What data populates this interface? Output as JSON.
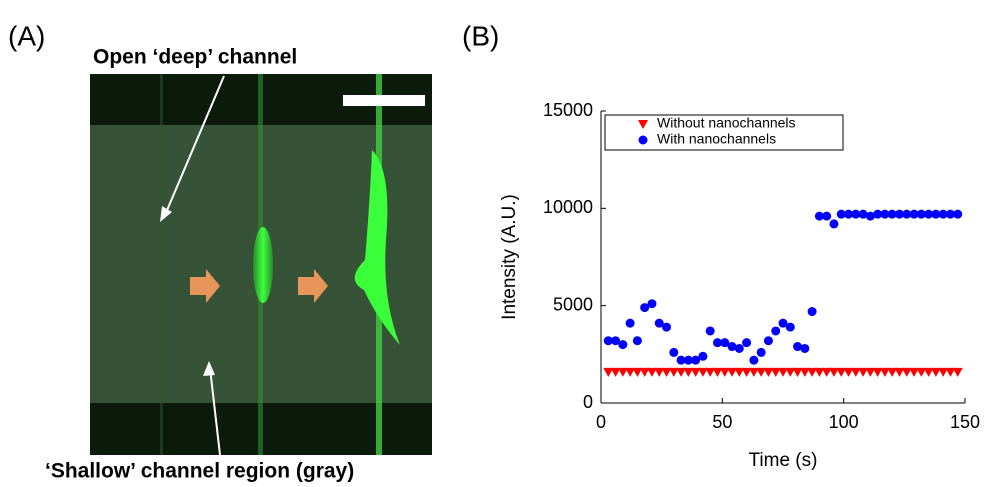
{
  "panel_a": {
    "label": "(A)",
    "top_annotation": "Open ‘deep’ channel",
    "bottom_annotation": "‘Shallow’ channel region (gray)"
  },
  "chart_data": {
    "type": "scatter",
    "panel_label": "(B)",
    "x_label": "Time (s)",
    "y_label": "Intensity (A.U.)",
    "x": [
      3,
      6,
      9,
      12,
      15,
      18,
      21,
      24,
      27,
      30,
      33,
      36,
      39,
      42,
      45,
      48,
      51,
      54,
      57,
      60,
      63,
      66,
      69,
      72,
      75,
      78,
      81,
      84,
      87,
      90,
      93,
      96,
      99,
      102,
      105,
      108,
      111,
      114,
      117,
      120,
      123,
      126,
      129,
      132,
      135,
      138,
      141,
      144,
      147
    ],
    "series": [
      {
        "name": "Without nanochannels",
        "color": "#ff0000",
        "marker": "triangle-down",
        "values": [
          1600,
          1600,
          1600,
          1600,
          1600,
          1600,
          1600,
          1600,
          1600,
          1600,
          1600,
          1600,
          1600,
          1600,
          1600,
          1600,
          1600,
          1600,
          1600,
          1600,
          1600,
          1600,
          1600,
          1600,
          1600,
          1600,
          1600,
          1600,
          1600,
          1600,
          1600,
          1600,
          1600,
          1600,
          1600,
          1600,
          1600,
          1600,
          1600,
          1600,
          1600,
          1600,
          1600,
          1600,
          1600,
          1600,
          1600,
          1600,
          1600
        ]
      },
      {
        "name": "With nanochannels",
        "color": "#0000ff",
        "marker": "circle",
        "values": [
          3200,
          3200,
          3000,
          4100,
          3200,
          4900,
          5100,
          4100,
          3900,
          2600,
          2200,
          2200,
          2200,
          2400,
          3700,
          3100,
          3100,
          2900,
          2800,
          3100,
          2200,
          2600,
          3200,
          3700,
          4100,
          3900,
          2900,
          2800,
          4700,
          9600,
          9600,
          9200,
          9700,
          9700,
          9700,
          9700,
          9600,
          9700,
          9700,
          9700,
          9700,
          9700,
          9700,
          9700,
          9700,
          9700,
          9700,
          9700,
          9700
        ]
      }
    ],
    "xlim": [
      0,
      150
    ],
    "xticks": [
      0,
      50,
      100,
      150
    ],
    "ylim": [
      0,
      15000
    ],
    "yticks": [
      0,
      5000,
      10000,
      15000
    ],
    "grid": false,
    "legend": "upper left"
  }
}
